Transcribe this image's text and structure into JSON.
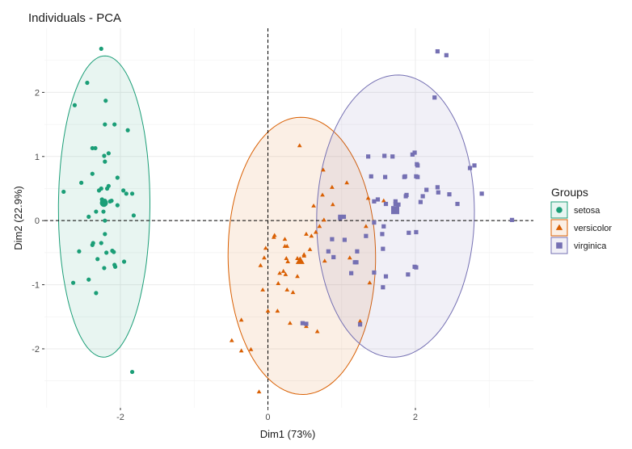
{
  "chart_data": {
    "type": "scatter",
    "title": "Individuals - PCA",
    "xlabel": "Dim1 (73%)",
    "ylabel": "Dim2 (22.9%)",
    "xlim": [
      -3.03,
      3.6
    ],
    "ylim": [
      -2.92,
      3.0
    ],
    "xticks": [
      -2,
      0,
      2
    ],
    "yticks": [
      -2,
      -1,
      0,
      1,
      2
    ],
    "xtick_labels": [
      "-2",
      "0",
      "2"
    ],
    "ytick_labels": [
      "-2",
      "-1",
      "0",
      "1",
      "2"
    ],
    "x_minor": [
      -3,
      -1,
      1,
      3
    ],
    "y_minor": [
      -2.5,
      -1.5,
      -0.5,
      0.5,
      1.5,
      2.5
    ],
    "grid": true,
    "reference_lines": {
      "x": 0,
      "y": 0,
      "style": "dashed"
    },
    "legend": {
      "title": "Groups",
      "position": "right"
    },
    "series": [
      {
        "name": "setosa",
        "marker": "circle",
        "color": "#1b9e77",
        "fill": "#1b9e77",
        "ellipse": {
          "cx": -2.22,
          "cy": 0.22,
          "rx": 0.62,
          "ry": 2.35,
          "angle": -1
        },
        "points": [
          [
            -2.26,
            2.68
          ],
          [
            -2.45,
            2.15
          ],
          [
            -2.2,
            1.87
          ],
          [
            -2.62,
            1.8
          ],
          [
            -2.21,
            1.5
          ],
          [
            -2.08,
            1.5
          ],
          [
            -1.9,
            1.41
          ],
          [
            -2.38,
            1.13
          ],
          [
            -2.34,
            1.13
          ],
          [
            -2.22,
            1.01
          ],
          [
            -2.16,
            1.05
          ],
          [
            -2.21,
            0.92
          ],
          [
            -2.04,
            0.67
          ],
          [
            -2.53,
            0.59
          ],
          [
            -2.38,
            0.73
          ],
          [
            -2.77,
            0.45
          ],
          [
            -2.29,
            0.47
          ],
          [
            -2.26,
            0.5
          ],
          [
            -2.18,
            0.5
          ],
          [
            -2.16,
            0.54
          ],
          [
            -1.96,
            0.47
          ],
          [
            -1.92,
            0.42
          ],
          [
            -1.84,
            0.42
          ],
          [
            -2.25,
            0.33
          ],
          [
            -2.23,
            0.3
          ],
          [
            -2.24,
            0.26
          ],
          [
            -2.21,
            0.31
          ],
          [
            -2.14,
            0.3
          ],
          [
            -2.12,
            0.31
          ],
          [
            -2.04,
            0.24
          ],
          [
            -2.33,
            0.14
          ],
          [
            -2.23,
            0.14
          ],
          [
            -2.43,
            0.06
          ],
          [
            -1.82,
            0.08
          ],
          [
            -2.21,
            0.0
          ],
          [
            -2.21,
            -0.21
          ],
          [
            -2.37,
            -0.35
          ],
          [
            -2.38,
            -0.38
          ],
          [
            -2.26,
            -0.35
          ],
          [
            -2.56,
            -0.48
          ],
          [
            -2.19,
            -0.5
          ],
          [
            -2.11,
            -0.47
          ],
          [
            -2.09,
            -0.49
          ],
          [
            -2.31,
            -0.6
          ],
          [
            -2.22,
            -0.74
          ],
          [
            -2.08,
            -0.69
          ],
          [
            -2.07,
            -0.72
          ],
          [
            -1.95,
            -0.64
          ],
          [
            -2.43,
            -0.92
          ],
          [
            -2.64,
            -0.97
          ],
          [
            -2.33,
            -1.13
          ],
          [
            -1.84,
            -2.36
          ]
        ]
      },
      {
        "name": "versicolor",
        "marker": "triangle",
        "color": "#d95f02",
        "fill": "#d95f02",
        "ellipse": {
          "cx": 0.46,
          "cy": -0.55,
          "rx": 1.05,
          "ry": 2.28,
          "angle": 28
        },
        "points": [
          [
            0.43,
            1.17
          ],
          [
            0.75,
            0.79
          ],
          [
            0.87,
            0.52
          ],
          [
            1.07,
            0.59
          ],
          [
            0.74,
            0.4
          ],
          [
            0.88,
            0.25
          ],
          [
            1.36,
            0.35
          ],
          [
            1.57,
            0.31
          ],
          [
            0.62,
            0.23
          ],
          [
            1.33,
            -0.09
          ],
          [
            0.76,
            0.01
          ],
          [
            0.7,
            -0.09
          ],
          [
            0.65,
            -0.18
          ],
          [
            0.52,
            -0.21
          ],
          [
            0.59,
            -0.24
          ],
          [
            0.09,
            -0.23
          ],
          [
            0.08,
            -0.26
          ],
          [
            0.23,
            -0.29
          ],
          [
            0.26,
            -0.4
          ],
          [
            0.23,
            -0.4
          ],
          [
            -0.03,
            -0.43
          ],
          [
            0.27,
            -0.64
          ],
          [
            0.25,
            -0.59
          ],
          [
            0.57,
            -0.45
          ],
          [
            0.77,
            -0.63
          ],
          [
            0.49,
            -0.55
          ],
          [
            0.24,
            -0.84
          ],
          [
            0.4,
            -0.87
          ],
          [
            0.4,
            -0.59
          ],
          [
            0.21,
            -0.79
          ],
          [
            0.16,
            -0.82
          ],
          [
            -0.1,
            -0.7
          ],
          [
            0.26,
            -1.08
          ],
          [
            0.34,
            -1.12
          ],
          [
            0.0,
            -1.41
          ],
          [
            0.13,
            -1.41
          ],
          [
            0.67,
            -1.73
          ],
          [
            0.3,
            -1.6
          ],
          [
            0.52,
            -1.65
          ],
          [
            -0.36,
            -1.55
          ],
          [
            -0.49,
            -1.87
          ],
          [
            -0.36,
            -2.03
          ],
          [
            -0.12,
            -2.67
          ],
          [
            -0.05,
            -0.58
          ],
          [
            -0.23,
            -2.01
          ],
          [
            1.11,
            -0.58
          ],
          [
            1.38,
            -0.97
          ],
          [
            1.25,
            -1.57
          ],
          [
            0.14,
            -0.98
          ],
          [
            -0.07,
            -1.08
          ],
          [
            0.49,
            -0.53
          ]
        ]
      },
      {
        "name": "virginica",
        "marker": "square",
        "color": "#7570b3",
        "fill": "#7570b3",
        "ellipse": {
          "cx": 1.73,
          "cy": 0.07,
          "rx": 1.12,
          "ry": 2.28,
          "angle": 25
        },
        "points": [
          [
            2.3,
            2.64
          ],
          [
            2.42,
            2.58
          ],
          [
            2.26,
            1.92
          ],
          [
            1.36,
            1.0
          ],
          [
            1.58,
            1.01
          ],
          [
            1.69,
            1.0
          ],
          [
            1.96,
            1.03
          ],
          [
            1.99,
            1.06
          ],
          [
            2.02,
            0.88
          ],
          [
            2.03,
            0.86
          ],
          [
            2.1,
            0.38
          ],
          [
            2.3,
            0.52
          ],
          [
            1.4,
            0.69
          ],
          [
            1.59,
            0.68
          ],
          [
            1.85,
            0.68
          ],
          [
            1.86,
            0.69
          ],
          [
            2.01,
            0.69
          ],
          [
            2.03,
            0.68
          ],
          [
            2.15,
            0.48
          ],
          [
            2.31,
            0.44
          ],
          [
            2.46,
            0.41
          ],
          [
            2.57,
            0.26
          ],
          [
            2.74,
            0.82
          ],
          [
            2.8,
            0.86
          ],
          [
            2.9,
            0.42
          ],
          [
            3.31,
            0.01
          ],
          [
            1.44,
            0.3
          ],
          [
            1.49,
            0.33
          ],
          [
            1.77,
            0.25
          ],
          [
            1.73,
            0.26
          ],
          [
            1.87,
            0.38
          ],
          [
            1.88,
            0.4
          ],
          [
            2.07,
            0.29
          ],
          [
            1.73,
            0.3
          ],
          [
            1.44,
            -0.03
          ],
          [
            1.57,
            -0.09
          ],
          [
            1.91,
            -0.19
          ],
          [
            2.01,
            -0.18
          ],
          [
            1.33,
            -0.24
          ],
          [
            0.98,
            0.04
          ],
          [
            1.03,
            0.06
          ],
          [
            0.87,
            -0.29
          ],
          [
            1.04,
            -0.3
          ],
          [
            1.21,
            -0.48
          ],
          [
            1.56,
            -0.44
          ],
          [
            1.6,
            -0.87
          ],
          [
            1.56,
            -1.04
          ],
          [
            1.9,
            -0.84
          ],
          [
            1.55,
            -0.21
          ],
          [
            1.99,
            -0.72
          ],
          [
            1.44,
            -0.81
          ],
          [
            1.25,
            -1.62
          ],
          [
            0.47,
            -1.6
          ],
          [
            1.13,
            -0.82
          ],
          [
            1.18,
            -0.65
          ],
          [
            0.82,
            -0.48
          ],
          [
            0.89,
            -0.57
          ],
          [
            0.52,
            -1.61
          ],
          [
            0.98,
            0.06
          ],
          [
            1.2,
            -0.65
          ],
          [
            1.6,
            0.26
          ],
          [
            2.01,
            -0.73
          ]
        ]
      }
    ]
  }
}
